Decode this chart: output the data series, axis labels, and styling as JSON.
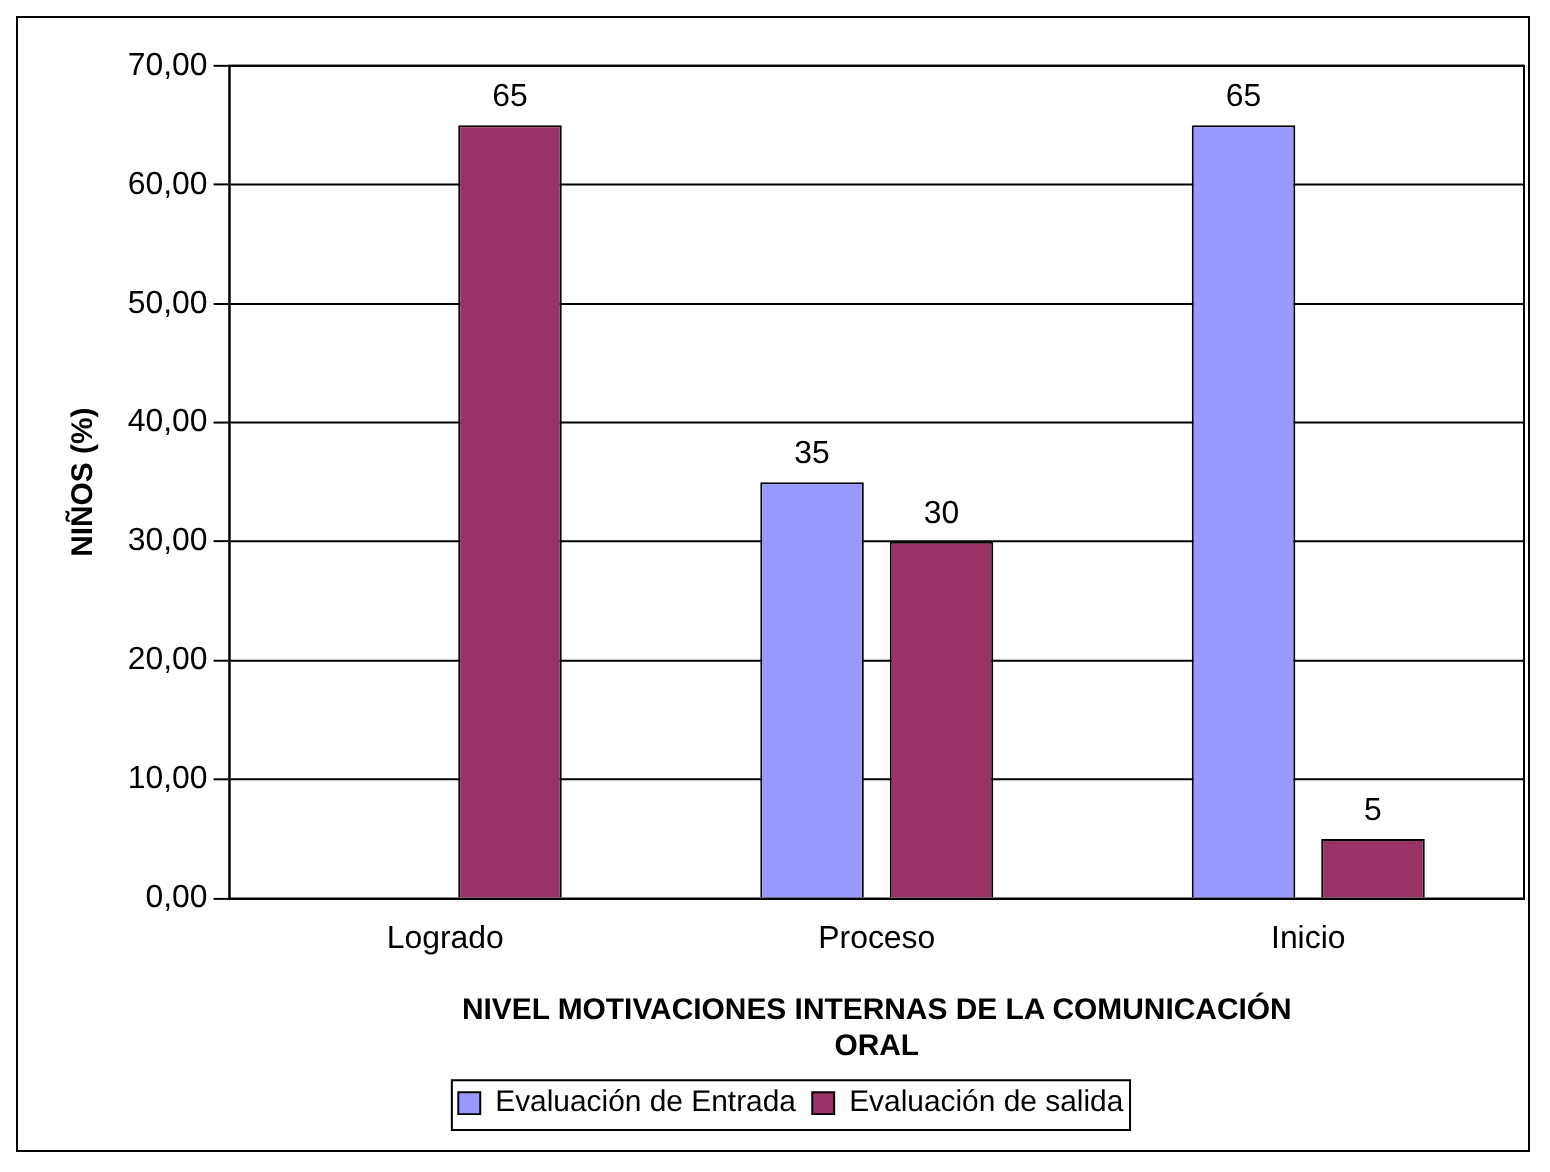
{
  "chart_data": {
    "type": "bar",
    "categories": [
      "Logrado",
      "Proceso",
      "Inicio"
    ],
    "series": [
      {
        "name": "Evaluación de Entrada",
        "color": "#9999ff",
        "values": [
          0,
          35,
          65
        ],
        "value_labels": [
          null,
          "35",
          "65"
        ]
      },
      {
        "name": "Evaluación de salida",
        "color": "#993366",
        "values": [
          65,
          30,
          5
        ],
        "value_labels": [
          "65",
          "30",
          "5"
        ]
      }
    ],
    "xlabel": "NIVEL MOTIVACIONES INTERNAS DE LA COMUNICACIÓN ORAL",
    "ylabel": "NIÑOS (%)",
    "ylim": [
      0,
      70
    ],
    "yticks": [
      {
        "value": 0,
        "label": "0,00"
      },
      {
        "value": 10,
        "label": "10,00"
      },
      {
        "value": 20,
        "label": "20,00"
      },
      {
        "value": 30,
        "label": "30,00"
      },
      {
        "value": 40,
        "label": "40,00"
      },
      {
        "value": 50,
        "label": "50,00"
      },
      {
        "value": 60,
        "label": "60,00"
      },
      {
        "value": 70,
        "label": "70,00"
      }
    ],
    "grid": "y",
    "legend": "bottom"
  }
}
